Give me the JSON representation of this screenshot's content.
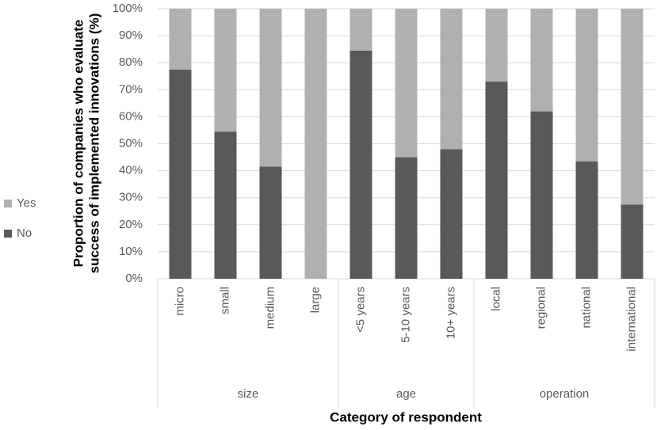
{
  "chart_data": {
    "type": "stacked_bar",
    "y_label": [
      "Proportion of companies who evaluate",
      "success of implemented innovations (%)"
    ],
    "x_label": "Category of respondent",
    "groups": [
      {
        "name": "size",
        "categories": [
          "micro",
          "small",
          "medium",
          "large"
        ]
      },
      {
        "name": "age",
        "categories": [
          "<5 years",
          "5-10 years",
          "10+ years"
        ]
      },
      {
        "name": "operation",
        "categories": [
          "local",
          "regional",
          "national",
          "international"
        ]
      }
    ],
    "series": [
      {
        "name": "No",
        "color": "#595959",
        "values": [
          77.5,
          54.5,
          41.5,
          0,
          84.5,
          45,
          48,
          73,
          62,
          43.5,
          27.5
        ]
      },
      {
        "name": "Yes",
        "color": "#b0b0b0",
        "values": [
          22.5,
          45.5,
          58.5,
          100,
          15.5,
          55,
          52,
          27,
          38,
          56.5,
          72.5
        ]
      }
    ],
    "ylim": [
      0,
      100
    ],
    "yticks": [
      {
        "value": 0,
        "label": "0%"
      },
      {
        "value": 10,
        "label": "10%"
      },
      {
        "value": 20,
        "label": "20%"
      },
      {
        "value": 30,
        "label": "30%"
      },
      {
        "value": 40,
        "label": "40%"
      },
      {
        "value": 50,
        "label": "50%"
      },
      {
        "value": 60,
        "label": "60%"
      },
      {
        "value": 70,
        "label": "70%"
      },
      {
        "value": 80,
        "label": "80%"
      },
      {
        "value": 90,
        "label": "90%"
      },
      {
        "value": 100,
        "label": "100%"
      }
    ],
    "grid": true,
    "legend": "left"
  }
}
